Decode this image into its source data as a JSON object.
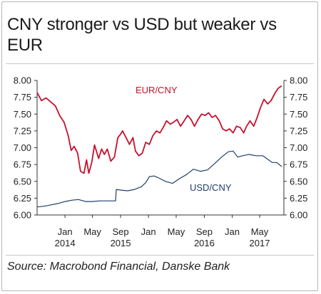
{
  "chart_data": {
    "type": "line",
    "title": "CNY stronger vs USD but weaker vs EUR",
    "source": "Source: Macrobond Financial, Danske Bank",
    "ylim": [
      6.0,
      8.0
    ],
    "y_ticks": [
      "8.00",
      "7.75",
      "7.50",
      "7.25",
      "7.00",
      "6.75",
      "6.50",
      "6.25",
      "6.00"
    ],
    "y_tick_values": [
      8.0,
      7.75,
      7.5,
      7.25,
      7.0,
      6.75,
      6.5,
      6.25,
      6.0
    ],
    "x_range": [
      "2014-09-01",
      "2017-08-15"
    ],
    "x_ticks": [
      {
        "date": "2015-01-01",
        "month": "Jan",
        "year": "2014"
      },
      {
        "date": "2015-05-01",
        "month": "May",
        "year": ""
      },
      {
        "date": "2015-09-01",
        "month": "Sep",
        "year": "2015"
      },
      {
        "date": "2016-01-01",
        "month": "Jan",
        "year": ""
      },
      {
        "date": "2016-05-01",
        "month": "May",
        "year": ""
      },
      {
        "date": "2016-09-01",
        "month": "Sep",
        "year": "2016"
      },
      {
        "date": "2017-01-01",
        "month": "Jan",
        "year": ""
      },
      {
        "date": "2017-05-01",
        "month": "May",
        "year": "2017"
      }
    ],
    "grid": false,
    "series": [
      {
        "name": "EUR/CNY",
        "color": "#c8102e",
        "points": [
          [
            "2014-09-01",
            7.82
          ],
          [
            "2014-09-20",
            7.7
          ],
          [
            "2014-10-10",
            7.74
          ],
          [
            "2014-10-31",
            7.68
          ],
          [
            "2014-11-20",
            7.62
          ],
          [
            "2014-12-10",
            7.47
          ],
          [
            "2014-12-28",
            7.38
          ],
          [
            "2015-01-15",
            7.18
          ],
          [
            "2015-01-28",
            6.96
          ],
          [
            "2015-02-10",
            7.02
          ],
          [
            "2015-02-25",
            6.92
          ],
          [
            "2015-03-10",
            6.65
          ],
          [
            "2015-03-25",
            6.62
          ],
          [
            "2015-04-05",
            6.82
          ],
          [
            "2015-04-15",
            6.62
          ],
          [
            "2015-04-28",
            6.78
          ],
          [
            "2015-05-10",
            7.04
          ],
          [
            "2015-05-28",
            6.84
          ],
          [
            "2015-06-10",
            6.98
          ],
          [
            "2015-06-22",
            6.9
          ],
          [
            "2015-07-05",
            6.98
          ],
          [
            "2015-07-20",
            6.8
          ],
          [
            "2015-08-05",
            6.86
          ],
          [
            "2015-08-20",
            7.15
          ],
          [
            "2015-09-01",
            7.2
          ],
          [
            "2015-09-10",
            7.25
          ],
          [
            "2015-09-25",
            7.15
          ],
          [
            "2015-10-10",
            7.05
          ],
          [
            "2015-10-25",
            7.15
          ],
          [
            "2015-11-05",
            6.95
          ],
          [
            "2015-11-20",
            6.88
          ],
          [
            "2015-12-05",
            6.92
          ],
          [
            "2015-12-20",
            7.08
          ],
          [
            "2016-01-05",
            7.05
          ],
          [
            "2016-01-20",
            7.18
          ],
          [
            "2016-02-05",
            7.25
          ],
          [
            "2016-02-20",
            7.22
          ],
          [
            "2016-03-05",
            7.3
          ],
          [
            "2016-03-20",
            7.4
          ],
          [
            "2016-04-05",
            7.35
          ],
          [
            "2016-04-20",
            7.38
          ],
          [
            "2016-05-05",
            7.42
          ],
          [
            "2016-05-20",
            7.32
          ],
          [
            "2016-06-05",
            7.4
          ],
          [
            "2016-06-20",
            7.48
          ],
          [
            "2016-07-05",
            7.42
          ],
          [
            "2016-07-20",
            7.32
          ],
          [
            "2016-08-05",
            7.42
          ],
          [
            "2016-08-20",
            7.5
          ],
          [
            "2016-09-05",
            7.48
          ],
          [
            "2016-09-20",
            7.52
          ],
          [
            "2016-10-05",
            7.45
          ],
          [
            "2016-10-20",
            7.48
          ],
          [
            "2016-11-05",
            7.4
          ],
          [
            "2016-11-20",
            7.28
          ],
          [
            "2016-12-05",
            7.25
          ],
          [
            "2016-12-20",
            7.28
          ],
          [
            "2017-01-05",
            7.22
          ],
          [
            "2017-01-20",
            7.32
          ],
          [
            "2017-02-05",
            7.3
          ],
          [
            "2017-02-20",
            7.22
          ],
          [
            "2017-03-05",
            7.32
          ],
          [
            "2017-03-20",
            7.4
          ],
          [
            "2017-04-05",
            7.32
          ],
          [
            "2017-04-20",
            7.45
          ],
          [
            "2017-05-05",
            7.6
          ],
          [
            "2017-05-20",
            7.72
          ],
          [
            "2017-06-05",
            7.65
          ],
          [
            "2017-06-20",
            7.7
          ],
          [
            "2017-07-05",
            7.8
          ],
          [
            "2017-07-20",
            7.88
          ],
          [
            "2017-08-05",
            7.92
          ]
        ]
      },
      {
        "name": "USD/CNY",
        "color": "#1f3d6b",
        "points": [
          [
            "2014-09-01",
            6.12
          ],
          [
            "2014-10-01",
            6.13
          ],
          [
            "2014-11-01",
            6.15
          ],
          [
            "2014-12-01",
            6.17
          ],
          [
            "2015-01-01",
            6.2
          ],
          [
            "2015-02-01",
            6.22
          ],
          [
            "2015-03-01",
            6.23
          ],
          [
            "2015-04-01",
            6.2
          ],
          [
            "2015-05-01",
            6.2
          ],
          [
            "2015-06-01",
            6.21
          ],
          [
            "2015-07-01",
            6.21
          ],
          [
            "2015-08-10",
            6.21
          ],
          [
            "2015-08-13",
            6.38
          ],
          [
            "2015-09-01",
            6.37
          ],
          [
            "2015-10-01",
            6.36
          ],
          [
            "2015-11-01",
            6.38
          ],
          [
            "2015-12-01",
            6.42
          ],
          [
            "2015-12-20",
            6.48
          ],
          [
            "2016-01-05",
            6.57
          ],
          [
            "2016-01-25",
            6.58
          ],
          [
            "2016-02-15",
            6.55
          ],
          [
            "2016-03-15",
            6.5
          ],
          [
            "2016-04-15",
            6.47
          ],
          [
            "2016-05-15",
            6.54
          ],
          [
            "2016-06-15",
            6.6
          ],
          [
            "2016-07-15",
            6.68
          ],
          [
            "2016-08-15",
            6.65
          ],
          [
            "2016-09-15",
            6.67
          ],
          [
            "2016-10-15",
            6.76
          ],
          [
            "2016-11-15",
            6.86
          ],
          [
            "2016-12-15",
            6.94
          ],
          [
            "2017-01-05",
            6.95
          ],
          [
            "2017-01-25",
            6.86
          ],
          [
            "2017-02-15",
            6.88
          ],
          [
            "2017-03-15",
            6.9
          ],
          [
            "2017-04-15",
            6.88
          ],
          [
            "2017-05-15",
            6.88
          ],
          [
            "2017-06-05",
            6.83
          ],
          [
            "2017-06-25",
            6.78
          ],
          [
            "2017-07-15",
            6.78
          ],
          [
            "2017-08-05",
            6.72
          ]
        ]
      }
    ]
  }
}
